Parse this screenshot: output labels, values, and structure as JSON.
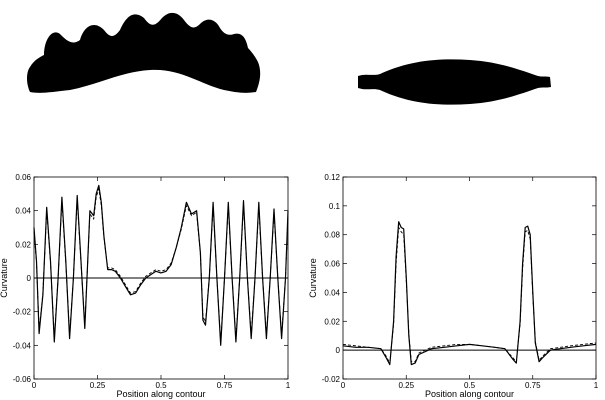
{
  "figure": {
    "shapes": [
      {
        "name": "wavy-arch-silhouette",
        "color": "#000000"
      },
      {
        "name": "spindle-silhouette",
        "color": "#000000"
      }
    ]
  },
  "chart_data": [
    {
      "type": "line",
      "xlabel": "Position along contour",
      "ylabel": "Curvature",
      "xlim": [
        0,
        1
      ],
      "ylim": [
        -0.06,
        0.06
      ],
      "xticks": [
        "0",
        "0.25",
        "0.5",
        "0.75",
        "1"
      ],
      "yticks": [
        "-0.06",
        "-0.04",
        "-0.02",
        "0",
        "0.02",
        "0.04",
        "0.06"
      ],
      "grid": false,
      "reference_line_y": 0,
      "series": [
        {
          "style": "solid",
          "x": [
            0,
            0.01,
            0.02,
            0.035,
            0.05,
            0.065,
            0.08,
            0.095,
            0.11,
            0.125,
            0.14,
            0.155,
            0.17,
            0.185,
            0.2,
            0.22,
            0.235,
            0.245,
            0.255,
            0.265,
            0.275,
            0.29,
            0.305,
            0.32,
            0.34,
            0.36,
            0.38,
            0.4,
            0.42,
            0.44,
            0.46,
            0.48,
            0.5,
            0.52,
            0.54,
            0.56,
            0.58,
            0.6,
            0.62,
            0.64,
            0.655,
            0.665,
            0.675,
            0.69,
            0.705,
            0.72,
            0.735,
            0.75,
            0.765,
            0.78,
            0.795,
            0.81,
            0.825,
            0.84,
            0.855,
            0.87,
            0.885,
            0.9,
            0.915,
            0.93,
            0.945,
            0.96,
            0.975,
            0.99,
            1
          ],
          "y": [
            0.03,
            0.01,
            -0.033,
            -0.01,
            0.042,
            0.01,
            -0.038,
            0.0,
            0.048,
            0.01,
            -0.036,
            0.0,
            0.049,
            0.01,
            -0.03,
            0.04,
            0.037,
            0.05,
            0.055,
            0.045,
            0.025,
            0.005,
            0.005,
            0.004,
            0.0,
            -0.005,
            -0.01,
            -0.009,
            -0.004,
            0.0,
            0.002,
            0.004,
            0.003,
            0.004,
            0.008,
            0.018,
            0.03,
            0.045,
            0.038,
            0.04,
            0.015,
            -0.025,
            -0.028,
            0.0,
            0.045,
            0.0,
            -0.04,
            0.0,
            0.045,
            0.0,
            -0.038,
            0.0,
            0.046,
            0.0,
            -0.036,
            0.0,
            0.045,
            0.0,
            -0.036,
            0.0,
            0.041,
            0.0,
            -0.036,
            0.0,
            0.04
          ]
        },
        {
          "style": "dashed",
          "x": [
            0,
            0.01,
            0.02,
            0.035,
            0.05,
            0.065,
            0.08,
            0.095,
            0.11,
            0.125,
            0.14,
            0.155,
            0.17,
            0.185,
            0.2,
            0.22,
            0.235,
            0.245,
            0.255,
            0.265,
            0.275,
            0.29,
            0.305,
            0.32,
            0.34,
            0.36,
            0.38,
            0.4,
            0.42,
            0.44,
            0.46,
            0.48,
            0.5,
            0.52,
            0.54,
            0.56,
            0.58,
            0.6,
            0.62,
            0.64,
            0.655,
            0.665,
            0.675,
            0.69,
            0.705,
            0.72,
            0.735,
            0.75,
            0.765,
            0.78,
            0.795,
            0.81,
            0.825,
            0.84,
            0.855,
            0.87,
            0.885,
            0.9,
            0.915,
            0.93,
            0.945,
            0.96,
            0.975,
            0.99,
            1
          ],
          "y": [
            0.028,
            0.009,
            -0.031,
            -0.009,
            0.04,
            0.009,
            -0.036,
            0.0,
            0.046,
            0.009,
            -0.034,
            0.0,
            0.047,
            0.009,
            -0.028,
            0.038,
            0.035,
            0.048,
            0.053,
            0.043,
            0.024,
            0.006,
            0.006,
            0.005,
            0.001,
            -0.004,
            -0.009,
            -0.008,
            -0.003,
            0.001,
            0.003,
            0.005,
            0.004,
            0.005,
            0.009,
            0.018,
            0.029,
            0.043,
            0.037,
            0.039,
            0.014,
            -0.023,
            -0.026,
            0.0,
            0.043,
            0.0,
            -0.038,
            0.0,
            0.043,
            0.0,
            -0.036,
            0.0,
            0.044,
            0.0,
            -0.034,
            0.0,
            0.043,
            0.0,
            -0.034,
            0.0,
            0.039,
            0.0,
            -0.034,
            0.0,
            0.038
          ]
        }
      ]
    },
    {
      "type": "line",
      "xlabel": "Position along contour",
      "ylabel": "Curvature",
      "xlim": [
        0,
        1
      ],
      "ylim": [
        -0.02,
        0.12
      ],
      "xticks": [
        "0",
        "0.25",
        "0.5",
        "0.75",
        "1"
      ],
      "yticks": [
        "-0.02",
        "0",
        "0.02",
        "0.04",
        "0.06",
        "0.08",
        "0.1",
        "0.12"
      ],
      "grid": false,
      "reference_line_y": 0,
      "series": [
        {
          "style": "solid",
          "x": [
            0,
            0.05,
            0.1,
            0.15,
            0.17,
            0.185,
            0.2,
            0.21,
            0.22,
            0.23,
            0.24,
            0.25,
            0.26,
            0.27,
            0.285,
            0.3,
            0.35,
            0.4,
            0.45,
            0.5,
            0.55,
            0.6,
            0.64,
            0.67,
            0.685,
            0.7,
            0.71,
            0.72,
            0.73,
            0.74,
            0.75,
            0.76,
            0.775,
            0.79,
            0.82,
            0.86,
            0.9,
            0.95,
            1
          ],
          "y": [
            0.003,
            0.002,
            0.002,
            0.001,
            -0.005,
            -0.01,
            0.02,
            0.065,
            0.089,
            0.085,
            0.084,
            0.05,
            0.01,
            -0.01,
            -0.009,
            -0.003,
            0.001,
            0.002,
            0.003,
            0.004,
            0.003,
            0.002,
            0.001,
            -0.006,
            -0.009,
            0.02,
            0.06,
            0.085,
            0.086,
            0.08,
            0.04,
            0.005,
            -0.008,
            -0.005,
            0.0,
            0.001,
            0.002,
            0.003,
            0.004
          ]
        },
        {
          "style": "dashed",
          "x": [
            0,
            0.05,
            0.1,
            0.15,
            0.17,
            0.185,
            0.2,
            0.21,
            0.22,
            0.23,
            0.24,
            0.25,
            0.26,
            0.27,
            0.285,
            0.3,
            0.35,
            0.4,
            0.45,
            0.5,
            0.55,
            0.6,
            0.64,
            0.67,
            0.685,
            0.7,
            0.71,
            0.72,
            0.73,
            0.74,
            0.75,
            0.76,
            0.775,
            0.79,
            0.82,
            0.86,
            0.9,
            0.95,
            1
          ],
          "y": [
            0.004,
            0.003,
            0.002,
            0.001,
            -0.004,
            -0.009,
            0.018,
            0.06,
            0.085,
            0.082,
            0.08,
            0.048,
            0.012,
            -0.008,
            -0.008,
            -0.002,
            0.002,
            0.003,
            0.004,
            0.004,
            0.003,
            0.002,
            0.001,
            -0.005,
            -0.008,
            0.018,
            0.056,
            0.082,
            0.083,
            0.077,
            0.038,
            0.006,
            -0.007,
            -0.004,
            0.001,
            0.002,
            0.003,
            0.004,
            0.005
          ]
        }
      ]
    }
  ]
}
